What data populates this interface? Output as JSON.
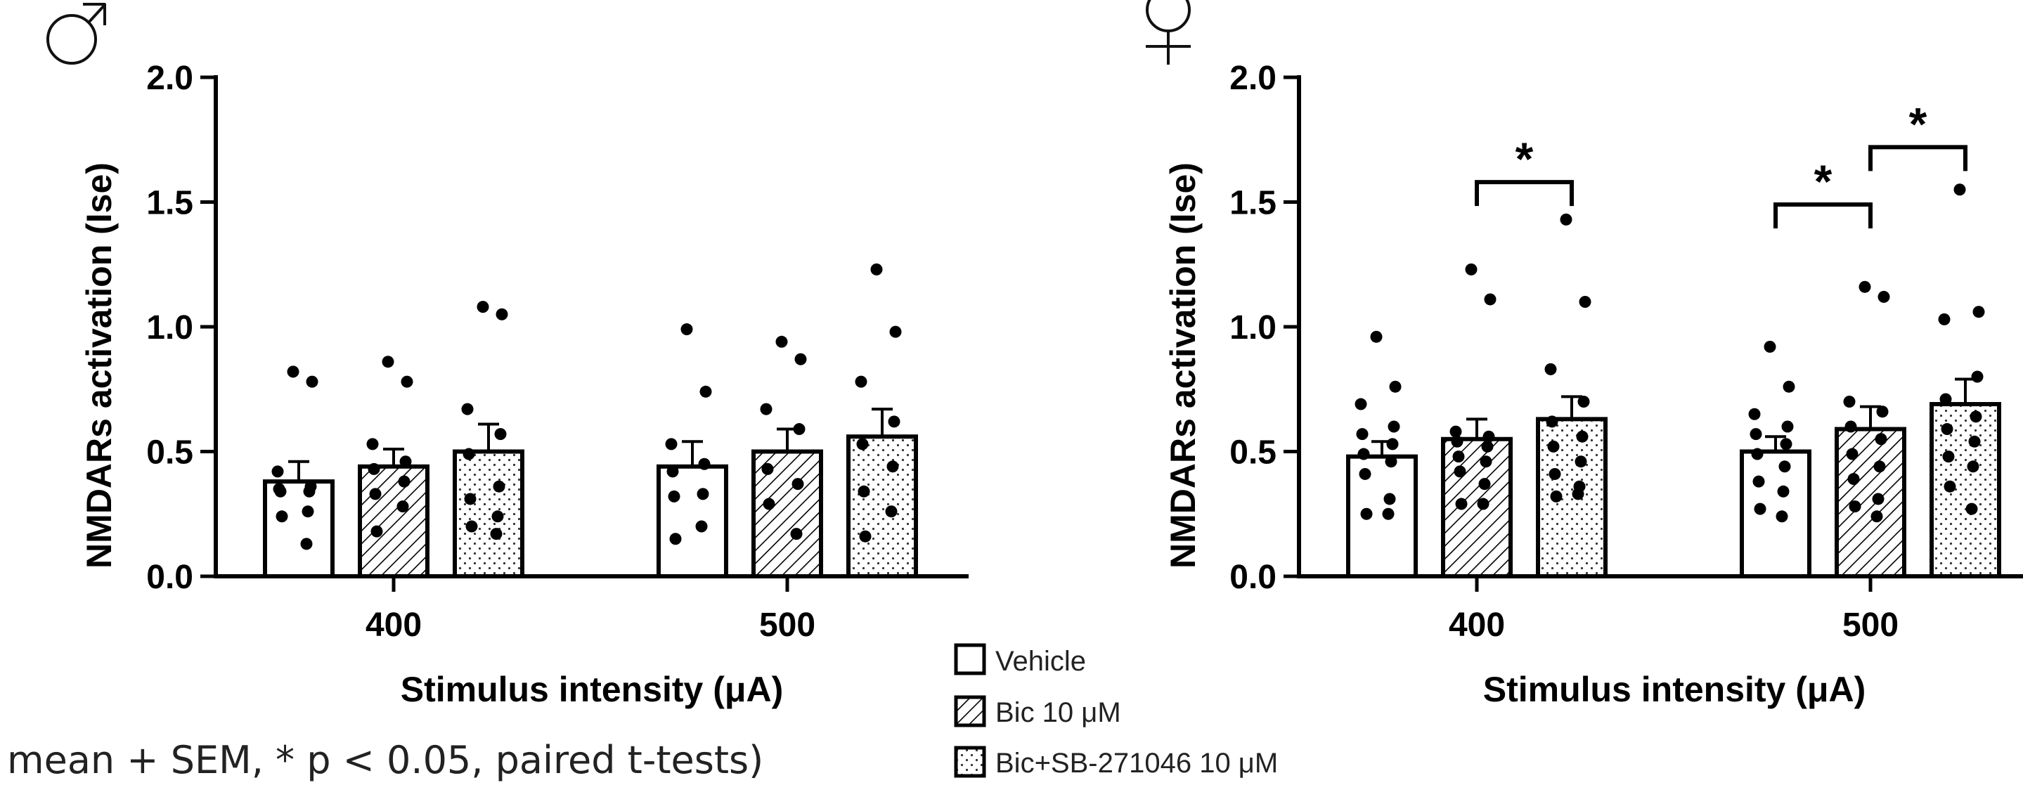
{
  "note": "mean + SEM, * p < 0.05, paired t-tests)",
  "legend": {
    "vehicle": "Vehicle",
    "bic": "Bic 10 μM",
    "bic_sb": "Bic+SB-271046 10 μM"
  },
  "chart_data": [
    {
      "type": "bar",
      "panel_symbol": "♂",
      "xlabel": "Stimulus intensity (μA)",
      "ylabel": "NMDARs activation (Ise)",
      "ylim": [
        0,
        2.0
      ],
      "yticks": [
        "0.0",
        "0.5",
        "1.0",
        "1.5",
        "2.0"
      ],
      "categories": [
        "400",
        "500"
      ],
      "series": [
        {
          "name": "Vehicle",
          "pattern": "solid",
          "values": [
            0.38,
            0.44
          ],
          "sem": [
            0.08,
            0.1
          ],
          "points": [
            [
              0.82,
              0.78,
              0.42,
              0.36,
              0.35,
              0.34,
              0.34,
              0.26,
              0.24,
              0.13
            ],
            [
              0.99,
              0.74,
              0.53,
              0.45,
              0.42,
              0.33,
              0.32,
              0.2,
              0.15
            ]
          ]
        },
        {
          "name": "Bic 10 μM",
          "pattern": "hatch",
          "values": [
            0.44,
            0.5
          ],
          "sem": [
            0.07,
            0.09
          ],
          "points": [
            [
              0.86,
              0.78,
              0.53,
              0.46,
              0.43,
              0.38,
              0.33,
              0.28,
              0.18
            ],
            [
              0.94,
              0.87,
              0.67,
              0.59,
              0.43,
              0.37,
              0.29,
              0.17
            ]
          ]
        },
        {
          "name": "Bic+SB-271046 10 μM",
          "pattern": "dots",
          "values": [
            0.5,
            0.56
          ],
          "sem": [
            0.11,
            0.11
          ],
          "points": [
            [
              1.08,
              1.05,
              0.67,
              0.57,
              0.49,
              0.36,
              0.31,
              0.24,
              0.2,
              0.17
            ],
            [
              1.23,
              0.98,
              0.78,
              0.62,
              0.53,
              0.44,
              0.34,
              0.26,
              0.16
            ]
          ]
        }
      ],
      "significance": []
    },
    {
      "type": "bar",
      "panel_symbol": "♀",
      "xlabel": "Stimulus intensity (μA)",
      "ylabel": "NMDARs activation (Ise)",
      "ylim": [
        0,
        2.0
      ],
      "yticks": [
        "0.0",
        "0.5",
        "1.0",
        "1.5",
        "2.0"
      ],
      "categories": [
        "400",
        "500"
      ],
      "series": [
        {
          "name": "Vehicle",
          "pattern": "solid",
          "values": [
            0.48,
            0.5
          ],
          "sem": [
            0.06,
            0.06
          ],
          "points": [
            [
              0.96,
              0.76,
              0.69,
              0.6,
              0.57,
              0.53,
              0.49,
              0.46,
              0.41,
              0.31,
              0.25,
              0.25
            ],
            [
              0.92,
              0.76,
              0.65,
              0.6,
              0.57,
              0.53,
              0.49,
              0.44,
              0.38,
              0.34,
              0.27,
              0.24
            ]
          ]
        },
        {
          "name": "Bic 10 μM",
          "pattern": "hatch",
          "values": [
            0.55,
            0.59
          ],
          "sem": [
            0.08,
            0.09
          ],
          "points": [
            [
              1.23,
              1.11,
              0.58,
              0.56,
              0.54,
              0.52,
              0.48,
              0.46,
              0.42,
              0.37,
              0.29,
              0.29
            ],
            [
              1.16,
              1.12,
              0.7,
              0.66,
              0.6,
              0.55,
              0.49,
              0.44,
              0.39,
              0.31,
              0.28,
              0.24
            ]
          ]
        },
        {
          "name": "Bic+SB-271046 10 μM",
          "pattern": "dots",
          "values": [
            0.63,
            0.69
          ],
          "sem": [
            0.09,
            0.1
          ],
          "points": [
            [
              1.43,
              1.1,
              0.83,
              0.7,
              0.62,
              0.56,
              0.52,
              0.46,
              0.41,
              0.36,
              0.32,
              0.33
            ],
            [
              1.55,
              1.06,
              1.03,
              0.8,
              0.71,
              0.64,
              0.59,
              0.54,
              0.48,
              0.44,
              0.36,
              0.27
            ]
          ]
        }
      ],
      "significance": [
        {
          "category": "400",
          "from_series": 1,
          "to_series": 2,
          "label": "*"
        },
        {
          "category": "500",
          "from_series": 0,
          "to_series": 1,
          "label": "*"
        },
        {
          "category": "500",
          "from_series": 1,
          "to_series": 2,
          "label": "*"
        }
      ]
    }
  ]
}
